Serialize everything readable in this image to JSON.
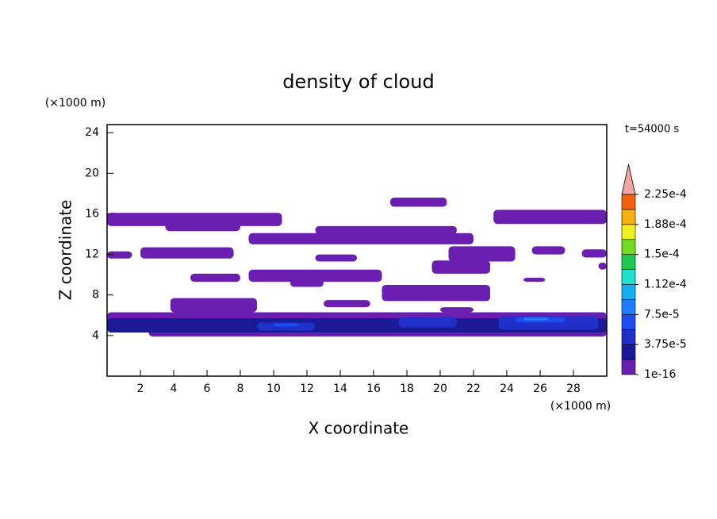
{
  "chart_data": {
    "type": "contour",
    "title": "density of cloud",
    "xlabel": "X coordinate",
    "ylabel": "Z coordinate",
    "xunit": "(×1000 m)",
    "yunit": "(×1000 m)",
    "time_label": "t=54000 s",
    "xlim": [
      0,
      30
    ],
    "ylim": [
      0,
      24.8
    ],
    "xticks": [
      2,
      4,
      6,
      8,
      10,
      12,
      14,
      16,
      18,
      20,
      22,
      24,
      26,
      28
    ],
    "yticks": [
      4,
      8,
      12,
      16,
      20,
      24
    ],
    "colorbar": {
      "clim": [
        1e-16,
        0.000225
      ],
      "extend_color": "#f4a4a4",
      "colors": [
        "#6a1fb0",
        "#1a1a96",
        "#1f2fc8",
        "#1e4cf0",
        "#1e7cff",
        "#14b0f4",
        "#20e0d0",
        "#20c850",
        "#70dc20",
        "#f0f020",
        "#f8b010",
        "#f06010"
      ],
      "ticks": [
        {
          "value": 1e-16,
          "label": "1e-16"
        },
        {
          "value": 3.75e-05,
          "label": "3.75e-5"
        },
        {
          "value": 7.5e-05,
          "label": "7.5e-5"
        },
        {
          "value": 0.0001125,
          "label": "1.12e-4"
        },
        {
          "value": 0.00015,
          "label": "1.5e-4"
        },
        {
          "value": 0.0001875,
          "label": "1.88e-4"
        },
        {
          "value": 0.000225,
          "label": "2.25e-4"
        }
      ]
    },
    "regions": [
      {
        "x": [
          0,
          30
        ],
        "y": [
          4.5,
          6.3
        ],
        "value": 1e-05
      },
      {
        "x": [
          2.5,
          30
        ],
        "y": [
          3.9,
          6.0
        ],
        "value": 1e-05
      },
      {
        "x": [
          0,
          30
        ],
        "y": [
          4.3,
          5.7
        ],
        "value": 2.5e-05
      },
      {
        "x": [
          9,
          12.5
        ],
        "y": [
          4.5,
          5.3
        ],
        "value": 4.5e-05
      },
      {
        "x": [
          17.5,
          21
        ],
        "y": [
          4.8,
          5.8
        ],
        "value": 4.5e-05
      },
      {
        "x": [
          23.5,
          29.5
        ],
        "y": [
          4.6,
          5.9
        ],
        "value": 4.5e-05
      },
      {
        "x": [
          10,
          11.5
        ],
        "y": [
          4.9,
          5.2
        ],
        "value": 6.5e-05
      },
      {
        "x": [
          24.5,
          27.5
        ],
        "y": [
          5.3,
          5.8
        ],
        "value": 6.5e-05
      },
      {
        "x": [
          25,
          26.5
        ],
        "y": [
          5.5,
          5.8
        ],
        "value": 8e-05
      },
      {
        "x": [
          0,
          10.5
        ],
        "y": [
          14.8,
          16.1
        ],
        "value": 2e-06
      },
      {
        "x": [
          3.5,
          8
        ],
        "y": [
          14.3,
          15.2
        ],
        "value": 2e-06
      },
      {
        "x": [
          17,
          20.4
        ],
        "y": [
          16.7,
          17.6
        ],
        "value": 2e-06
      },
      {
        "x": [
          23.2,
          30
        ],
        "y": [
          15.0,
          16.4
        ],
        "value": 2e-06
      },
      {
        "x": [
          8.5,
          22
        ],
        "y": [
          13.0,
          14.1
        ],
        "value": 2e-06
      },
      {
        "x": [
          12.5,
          21
        ],
        "y": [
          14.0,
          14.8
        ],
        "value": 2e-06
      },
      {
        "x": [
          0,
          1.5
        ],
        "y": [
          11.6,
          12.3
        ],
        "value": 2e-06
      },
      {
        "x": [
          2,
          7.6
        ],
        "y": [
          11.6,
          12.7
        ],
        "value": 2e-06
      },
      {
        "x": [
          12.5,
          15
        ],
        "y": [
          11.3,
          12.0
        ],
        "value": 2e-06
      },
      {
        "x": [
          20.5,
          24.5
        ],
        "y": [
          11.3,
          12.8
        ],
        "value": 2e-06
      },
      {
        "x": [
          25.5,
          27.5
        ],
        "y": [
          12.0,
          12.8
        ],
        "value": 2e-06
      },
      {
        "x": [
          28.5,
          30
        ],
        "y": [
          11.7,
          12.5
        ],
        "value": 2e-06
      },
      {
        "x": [
          5,
          8
        ],
        "y": [
          9.3,
          10.1
        ],
        "value": 2e-06
      },
      {
        "x": [
          8.5,
          16.5
        ],
        "y": [
          9.3,
          10.5
        ],
        "value": 2e-06
      },
      {
        "x": [
          11,
          13
        ],
        "y": [
          8.8,
          9.5
        ],
        "value": 2e-06
      },
      {
        "x": [
          19.5,
          23
        ],
        "y": [
          10.1,
          11.4
        ],
        "value": 2e-06
      },
      {
        "x": [
          25,
          26.3
        ],
        "y": [
          9.3,
          9.7
        ],
        "value": 2e-06
      },
      {
        "x": [
          29.5,
          30
        ],
        "y": [
          10.5,
          11.2
        ],
        "value": 2e-06
      },
      {
        "x": [
          3.8,
          9
        ],
        "y": [
          6.3,
          7.7
        ],
        "value": 2e-06
      },
      {
        "x": [
          13,
          15.8
        ],
        "y": [
          6.8,
          7.5
        ],
        "value": 2e-06
      },
      {
        "x": [
          16.5,
          23
        ],
        "y": [
          7.4,
          9.0
        ],
        "value": 2e-06
      },
      {
        "x": [
          20,
          22
        ],
        "y": [
          6.3,
          6.8
        ],
        "value": 2e-06
      }
    ]
  }
}
